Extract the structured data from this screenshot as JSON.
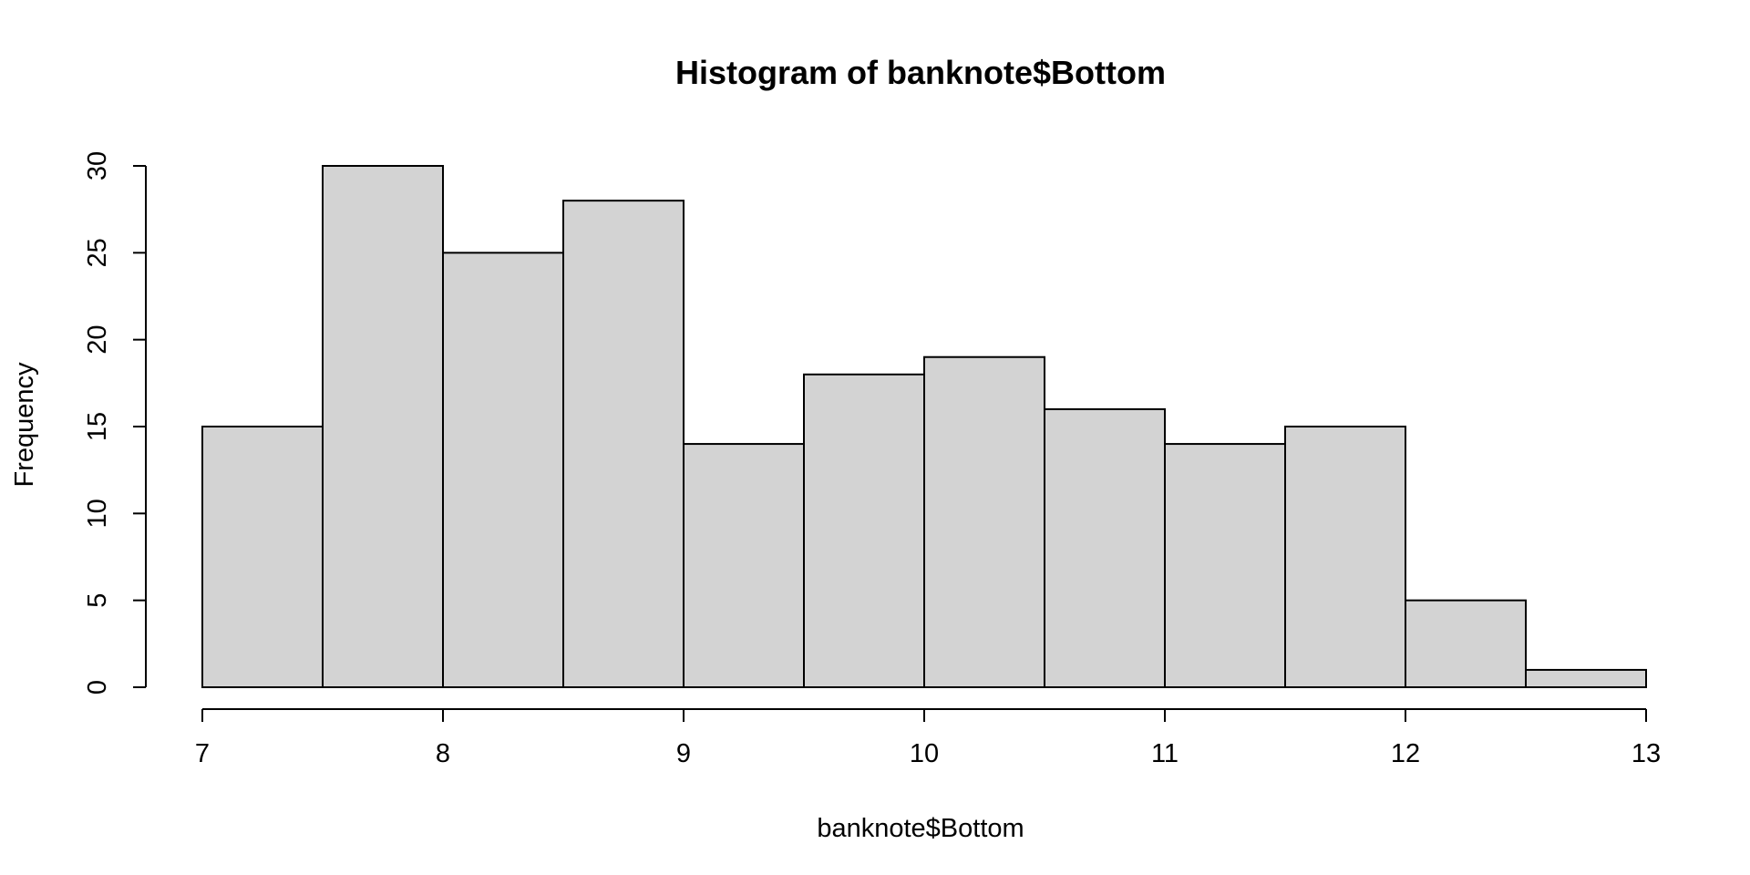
{
  "chart_data": {
    "type": "bar",
    "title": "Histogram of banknote$Bottom",
    "xlabel": "banknote$Bottom",
    "ylabel": "Frequency",
    "bins": [
      {
        "from": 7.0,
        "to": 7.5,
        "count": 15
      },
      {
        "from": 7.5,
        "to": 8.0,
        "count": 30
      },
      {
        "from": 8.0,
        "to": 8.5,
        "count": 25
      },
      {
        "from": 8.5,
        "to": 9.0,
        "count": 28
      },
      {
        "from": 9.0,
        "to": 9.5,
        "count": 14
      },
      {
        "from": 9.5,
        "to": 10.0,
        "count": 18
      },
      {
        "from": 10.0,
        "to": 10.5,
        "count": 19
      },
      {
        "from": 10.5,
        "to": 11.0,
        "count": 16
      },
      {
        "from": 11.0,
        "to": 11.5,
        "count": 14
      },
      {
        "from": 11.5,
        "to": 12.0,
        "count": 15
      },
      {
        "from": 12.0,
        "to": 12.5,
        "count": 5
      },
      {
        "from": 12.5,
        "to": 13.0,
        "count": 1
      }
    ],
    "x_ticks": [
      7,
      8,
      9,
      10,
      11,
      12,
      13
    ],
    "y_ticks": [
      0,
      5,
      10,
      15,
      20,
      25,
      30
    ],
    "xlim": [
      7,
      13
    ],
    "ylim": [
      0,
      30
    ],
    "grid": false,
    "bar_color": "#d3d3d3",
    "edge_color": "#000000"
  }
}
